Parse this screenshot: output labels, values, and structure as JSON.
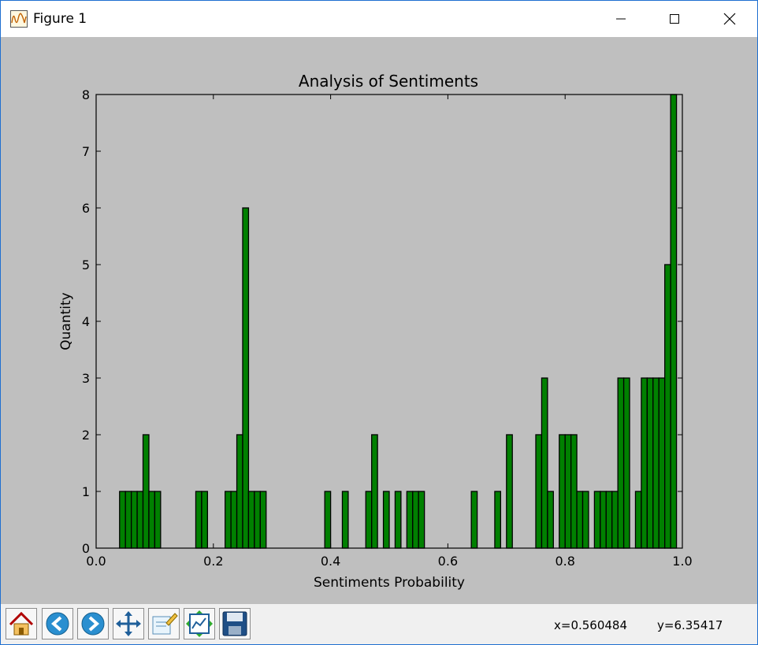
{
  "window": {
    "title": "Figure 1"
  },
  "toolbar": {
    "buttons": [
      {
        "icon": "home-icon"
      },
      {
        "icon": "back-icon"
      },
      {
        "icon": "forward-icon"
      },
      {
        "icon": "pan-icon"
      },
      {
        "icon": "zoom-icon"
      },
      {
        "icon": "configure-subplots-icon"
      },
      {
        "icon": "save-icon"
      }
    ],
    "x_readout": "x=0.560484",
    "y_readout": "y=6.35417"
  },
  "colors": {
    "bar_fill": "#008000",
    "canvas_bg": "#bfbfbf"
  },
  "chart_data": {
    "type": "bar",
    "title": "Analysis of Sentiments",
    "xlabel": "Sentiments Probability",
    "ylabel": "Quantity",
    "xlim": [
      0.0,
      1.0
    ],
    "ylim": [
      0,
      8
    ],
    "xticks": [
      "0.0",
      "0.2",
      "0.4",
      "0.6",
      "0.8",
      "1.0"
    ],
    "yticks": [
      "0",
      "1",
      "2",
      "3",
      "4",
      "5",
      "6",
      "7",
      "8"
    ],
    "grid": false,
    "bin_width": 0.01,
    "bins": [
      [
        0.04,
        1
      ],
      [
        0.05,
        1
      ],
      [
        0.06,
        1
      ],
      [
        0.07,
        1
      ],
      [
        0.08,
        2
      ],
      [
        0.09,
        1
      ],
      [
        0.1,
        1
      ],
      [
        0.17,
        1
      ],
      [
        0.18,
        1
      ],
      [
        0.22,
        1
      ],
      [
        0.23,
        1
      ],
      [
        0.24,
        2
      ],
      [
        0.25,
        6
      ],
      [
        0.26,
        1
      ],
      [
        0.27,
        1
      ],
      [
        0.28,
        1
      ],
      [
        0.39,
        1
      ],
      [
        0.42,
        1
      ],
      [
        0.46,
        1
      ],
      [
        0.47,
        2
      ],
      [
        0.49,
        1
      ],
      [
        0.51,
        1
      ],
      [
        0.53,
        1
      ],
      [
        0.54,
        1
      ],
      [
        0.55,
        1
      ],
      [
        0.64,
        1
      ],
      [
        0.68,
        1
      ],
      [
        0.7,
        2
      ],
      [
        0.75,
        2
      ],
      [
        0.76,
        3
      ],
      [
        0.77,
        1
      ],
      [
        0.79,
        2
      ],
      [
        0.8,
        2
      ],
      [
        0.81,
        2
      ],
      [
        0.82,
        1
      ],
      [
        0.83,
        1
      ],
      [
        0.85,
        1
      ],
      [
        0.86,
        1
      ],
      [
        0.87,
        1
      ],
      [
        0.88,
        1
      ],
      [
        0.89,
        3
      ],
      [
        0.9,
        3
      ],
      [
        0.92,
        1
      ],
      [
        0.93,
        3
      ],
      [
        0.94,
        3
      ],
      [
        0.95,
        3
      ],
      [
        0.96,
        3
      ],
      [
        0.97,
        5
      ],
      [
        0.98,
        8
      ]
    ]
  }
}
